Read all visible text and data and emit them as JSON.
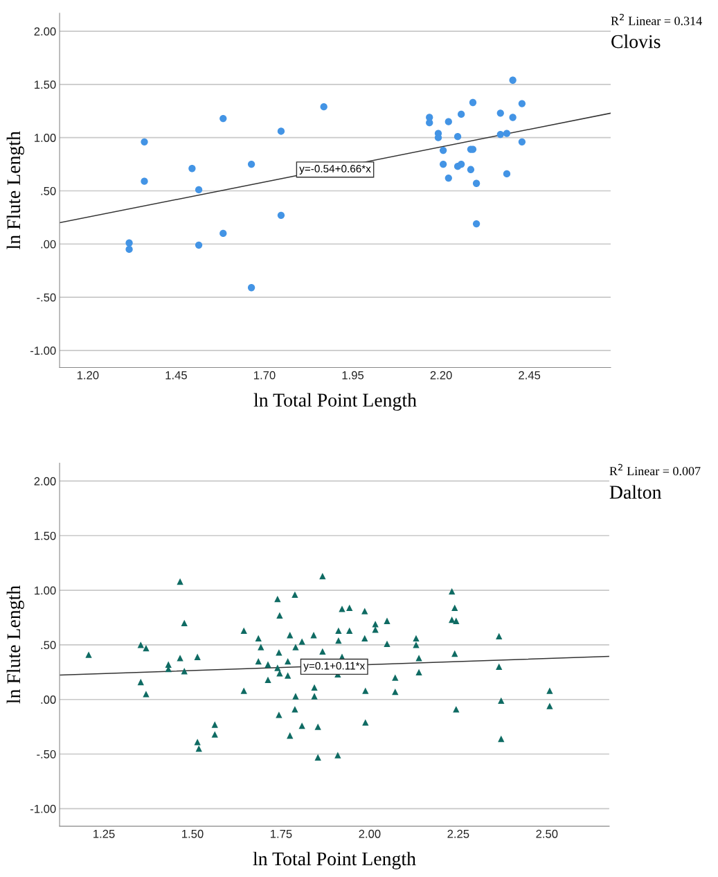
{
  "chart_data": [
    {
      "type": "scatter",
      "title": "Clovis",
      "xlabel": "ln Total Point Length",
      "ylabel": "ln Flute Length",
      "annotations": [
        "R$^{2}$ Linear = 0.314",
        {
          "text": "y=-0.54+0.66*x",
          "x": 1.9,
          "y": 0.7
        }
      ],
      "xlim": [
        1.12,
        2.68
      ],
      "ylim": [
        -1.16,
        2.17
      ],
      "xticks": [
        {
          "value": 1.2,
          "label": "1.20"
        },
        {
          "value": 1.45,
          "label": "1.45"
        },
        {
          "value": 1.7,
          "label": "1.70"
        },
        {
          "value": 1.95,
          "label": "1.95"
        },
        {
          "value": 2.2,
          "label": "2.20"
        },
        {
          "value": 2.45,
          "label": "2.45"
        }
      ],
      "yticks": [
        {
          "value": -1,
          "label": "-1.00"
        },
        {
          "value": -0.5,
          "label": "-.50"
        },
        {
          "value": 0,
          "label": ".00"
        },
        {
          "value": 0.5,
          "label": ".50"
        },
        {
          "value": 1,
          "label": "1.00"
        },
        {
          "value": 1.5,
          "label": "1.50"
        },
        {
          "value": 2,
          "label": "2.00"
        }
      ],
      "grid": "y",
      "legend": false,
      "series": [
        {
          "type": "scatter",
          "color": "#4394e5",
          "marker": "circle",
          "x": [
            1.317,
            1.317,
            1.36,
            1.36,
            1.495,
            1.514,
            1.514,
            1.583,
            1.583,
            1.663,
            1.663,
            1.747,
            1.747,
            1.868,
            2.167,
            2.167,
            2.192,
            2.192,
            2.206,
            2.206,
            2.221,
            2.221,
            2.247,
            2.247,
            2.257,
            2.257,
            2.284,
            2.284,
            2.29,
            2.29,
            2.3,
            2.3,
            2.368,
            2.368,
            2.386,
            2.386,
            2.403,
            2.403,
            2.429,
            2.429
          ],
          "values": [
            0.01,
            -0.05,
            0.96,
            0.59,
            0.71,
            0.51,
            -0.01,
            1.18,
            0.1,
            0.75,
            -0.41,
            1.06,
            0.27,
            1.29,
            1.19,
            1.14,
            1.04,
            1.0,
            0.88,
            0.75,
            1.15,
            0.62,
            1.01,
            0.73,
            1.22,
            0.75,
            0.89,
            0.7,
            0.89,
            1.33,
            0.57,
            0.19,
            1.23,
            1.03,
            1.04,
            0.66,
            1.54,
            1.19,
            1.32,
            0.96
          ]
        },
        {
          "type": "line",
          "color": "#333333",
          "marker": "none",
          "line_style": "solid",
          "x": [
            1.12,
            2.68
          ],
          "values": [
            0.2,
            1.23
          ]
        }
      ]
    },
    {
      "type": "scatter",
      "title": "Dalton",
      "xlabel": "ln Total Point Length",
      "ylabel": "ln Flute Length",
      "annotations": [
        "R$^{2}$ Linear = 0.007",
        {
          "text": "y=0.1+0.11*x",
          "x": 1.9,
          "y": 0.3
        }
      ],
      "xlim": [
        1.125,
        2.676
      ],
      "ylim": [
        -1.16,
        2.165
      ],
      "xticks": [
        {
          "value": 1.25,
          "label": "1.25"
        },
        {
          "value": 1.5,
          "label": "1.50"
        },
        {
          "value": 1.75,
          "label": "1.75"
        },
        {
          "value": 2.0,
          "label": "2.00"
        },
        {
          "value": 2.25,
          "label": "2.25"
        },
        {
          "value": 2.5,
          "label": "2.50"
        }
      ],
      "yticks": [
        {
          "value": -1,
          "label": "-1.00"
        },
        {
          "value": -0.5,
          "label": "-.50"
        },
        {
          "value": 0,
          "label": ".00"
        },
        {
          "value": 0.5,
          "label": ".50"
        },
        {
          "value": 1,
          "label": "1.00"
        },
        {
          "value": 1.5,
          "label": "1.50"
        },
        {
          "value": 2,
          "label": "2.00"
        }
      ],
      "grid": "y",
      "legend": false,
      "series": [
        {
          "type": "scatter",
          "color": "#0f6b63",
          "marker": "triangle",
          "x": [
            1.207,
            1.354,
            1.369,
            1.354,
            1.369,
            1.432,
            1.432,
            1.465,
            1.465,
            1.477,
            1.477,
            1.514,
            1.514,
            1.518,
            1.563,
            1.563,
            1.645,
            1.645,
            1.686,
            1.693,
            1.686,
            1.713,
            1.713,
            1.74,
            1.746,
            1.744,
            1.74,
            1.746,
            1.744,
            1.775,
            1.769,
            1.769,
            1.775,
            1.789,
            1.791,
            1.791,
            1.789,
            1.809,
            1.809,
            1.842,
            1.844,
            1.844,
            1.854,
            1.854,
            1.867,
            1.867,
            1.922,
            1.943,
            1.912,
            1.943,
            1.912,
            1.922,
            1.91,
            1.91,
            1.986,
            1.986,
            1.988,
            1.988,
            2.016,
            2.016,
            2.049,
            2.049,
            2.072,
            2.072,
            2.131,
            2.131,
            2.139,
            2.139,
            2.232,
            2.24,
            2.232,
            2.244,
            2.24,
            2.244,
            2.365,
            2.365,
            2.371,
            2.371,
            2.508,
            2.508
          ],
          "values": [
            0.41,
            0.5,
            0.47,
            0.16,
            0.05,
            0.32,
            0.28,
            0.38,
            1.08,
            0.7,
            0.26,
            0.39,
            -0.39,
            -0.45,
            -0.23,
            -0.32,
            0.63,
            0.08,
            0.56,
            0.48,
            0.35,
            0.32,
            0.18,
            0.92,
            0.77,
            0.43,
            0.29,
            0.24,
            -0.14,
            0.59,
            0.35,
            0.22,
            -0.33,
            0.96,
            0.48,
            0.03,
            -0.09,
            0.53,
            -0.24,
            0.59,
            0.11,
            0.03,
            -0.25,
            -0.53,
            1.13,
            0.44,
            0.83,
            0.84,
            0.63,
            0.63,
            0.54,
            0.39,
            0.23,
            -0.51,
            0.81,
            0.56,
            0.08,
            -0.21,
            0.69,
            0.64,
            0.72,
            0.51,
            0.2,
            0.07,
            0.56,
            0.5,
            0.38,
            0.25,
            0.99,
            0.84,
            0.73,
            0.72,
            0.42,
            -0.09,
            0.58,
            0.3,
            -0.01,
            -0.36,
            0.08,
            -0.06
          ]
        },
        {
          "type": "line",
          "color": "#333333",
          "marker": "none",
          "line_style": "solid",
          "x": [
            1.125,
            2.676
          ],
          "values": [
            0.224,
            0.394
          ]
        }
      ]
    }
  ]
}
